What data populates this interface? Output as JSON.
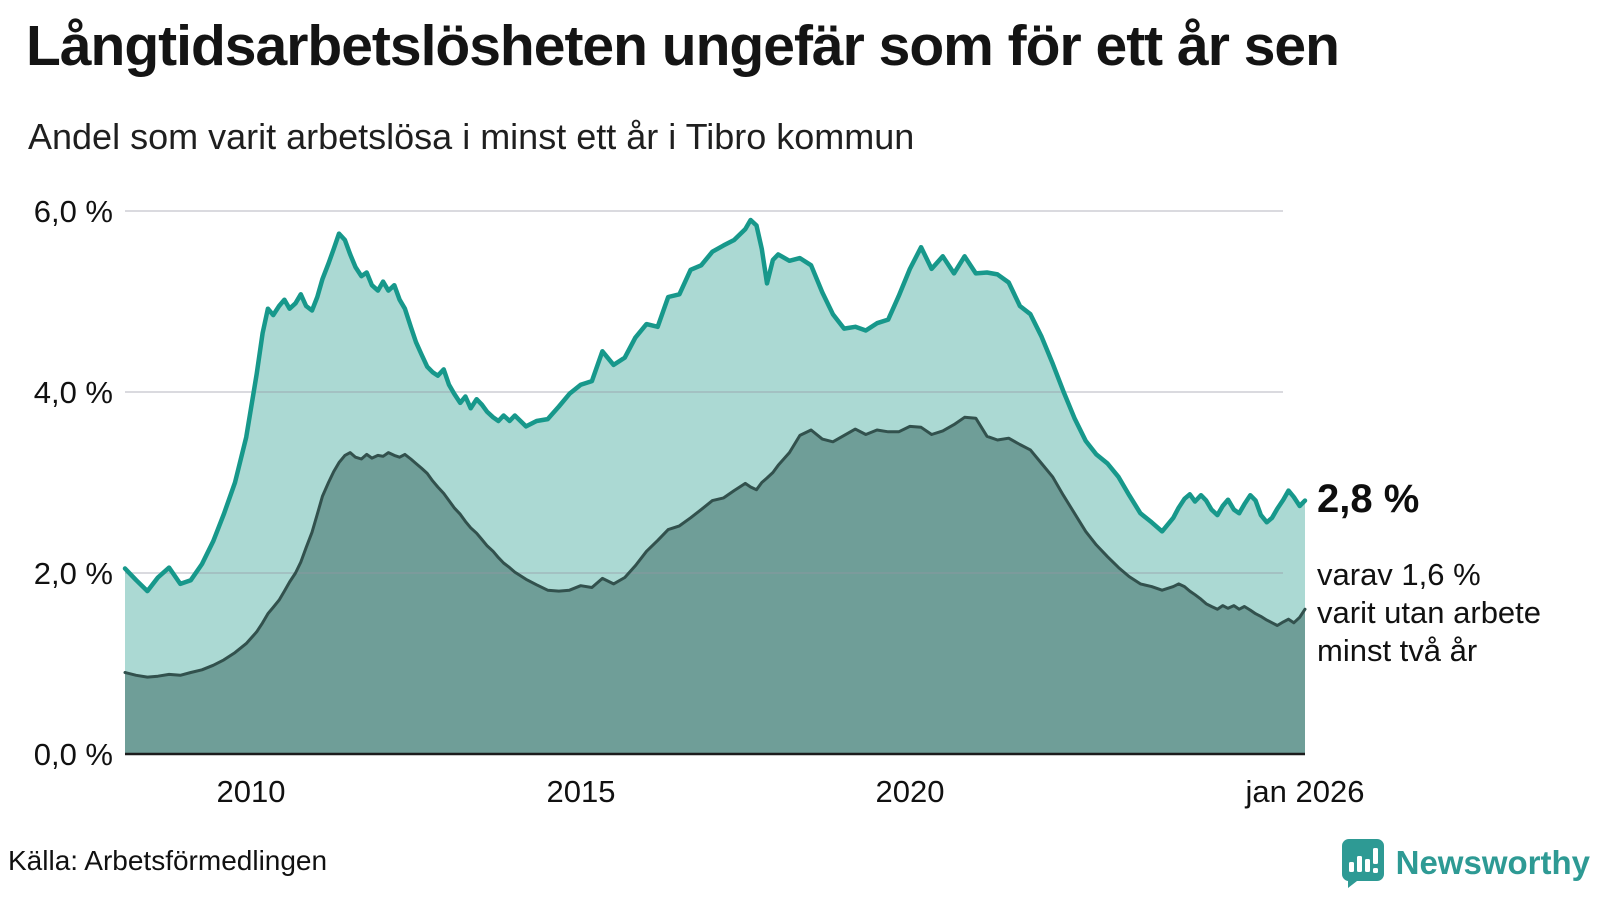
{
  "header": {
    "title": "Långtidsarbetslösheten ungefär som för ett år sen",
    "subtitle": "Andel som varit arbetslösa i minst ett år i Tibro kommun"
  },
  "annotations": {
    "latest_total": "2,8 %",
    "breakdown_line1": "varav 1,6 %",
    "breakdown_line2": "varit utan arbete",
    "breakdown_line3": "minst två år"
  },
  "source": {
    "label": "Källa: Arbetsförmedlingen"
  },
  "logo": {
    "text": "Newsworthy",
    "color": "#2e9a94"
  },
  "chart_data": {
    "type": "area",
    "title": "Långtidsarbetslösheten ungefär som för ett år sen",
    "subtitle": "Andel som varit arbetslösa i minst ett år i Tibro kommun",
    "x_unit": "decimal_year",
    "xlim": [
      2008.08,
      2026.0
    ],
    "ylim": [
      0,
      6.0
    ],
    "grid": true,
    "legend_position": "none",
    "grid_color": "rgba(150,150,162,0.35)",
    "axis_line_color": "#1c1c1c",
    "tick_label_color": "#111111",
    "y_ticks": [
      {
        "value": 0,
        "label": "0,0 %"
      },
      {
        "value": 2,
        "label": "2,0 %"
      },
      {
        "value": 4,
        "label": "4,0 %"
      },
      {
        "value": 6,
        "label": "6,0 %"
      }
    ],
    "x_ticks": [
      {
        "value": 2010,
        "label": "2010"
      },
      {
        "value": 2015,
        "label": "2015"
      },
      {
        "value": 2020,
        "label": "2020"
      },
      {
        "value": 2026.0,
        "label": "jan 2026"
      }
    ],
    "x": [
      2008.08,
      2008.25,
      2008.42,
      2008.58,
      2008.75,
      2008.92,
      2009.08,
      2009.25,
      2009.42,
      2009.58,
      2009.75,
      2009.92,
      2010.08,
      2010.17,
      2010.25,
      2010.33,
      2010.42,
      2010.5,
      2010.58,
      2010.67,
      2010.75,
      2010.83,
      2010.92,
      2011.0,
      2011.08,
      2011.17,
      2011.25,
      2011.33,
      2011.42,
      2011.5,
      2011.58,
      2011.67,
      2011.75,
      2011.83,
      2011.92,
      2012.0,
      2012.08,
      2012.17,
      2012.25,
      2012.33,
      2012.42,
      2012.5,
      2012.58,
      2012.67,
      2012.75,
      2012.83,
      2012.92,
      2013.0,
      2013.08,
      2013.17,
      2013.25,
      2013.33,
      2013.42,
      2013.5,
      2013.58,
      2013.67,
      2013.75,
      2013.83,
      2013.92,
      2014.0,
      2014.17,
      2014.33,
      2014.5,
      2014.67,
      2014.83,
      2015.0,
      2015.17,
      2015.33,
      2015.5,
      2015.67,
      2015.83,
      2016.0,
      2016.17,
      2016.33,
      2016.5,
      2016.67,
      2016.83,
      2017.0,
      2017.17,
      2017.33,
      2017.5,
      2017.58,
      2017.67,
      2017.75,
      2017.83,
      2017.92,
      2018.0,
      2018.17,
      2018.33,
      2018.5,
      2018.67,
      2018.83,
      2019.0,
      2019.17,
      2019.33,
      2019.5,
      2019.67,
      2019.83,
      2020.0,
      2020.17,
      2020.33,
      2020.5,
      2020.67,
      2020.83,
      2021.0,
      2021.17,
      2021.33,
      2021.5,
      2021.67,
      2021.83,
      2022.0,
      2022.17,
      2022.33,
      2022.5,
      2022.67,
      2022.83,
      2023.0,
      2023.17,
      2023.33,
      2023.5,
      2023.67,
      2023.83,
      2024.0,
      2024.08,
      2024.17,
      2024.25,
      2024.33,
      2024.42,
      2024.5,
      2024.58,
      2024.67,
      2024.75,
      2024.83,
      2024.92,
      2025.0,
      2025.08,
      2025.17,
      2025.25,
      2025.33,
      2025.42,
      2025.5,
      2025.58,
      2025.67,
      2025.75,
      2025.83,
      2025.92,
      2026.0
    ],
    "series": [
      {
        "name": "Andel arbetslösa minst ett år",
        "color": "#17988b",
        "fill": "#abd9d3",
        "stroke_width": 4.5,
        "end_label": "2,8 %",
        "values": [
          2.05,
          1.92,
          1.8,
          1.95,
          2.06,
          1.88,
          1.92,
          2.1,
          2.35,
          2.65,
          3.0,
          3.5,
          4.2,
          4.65,
          4.92,
          4.85,
          4.95,
          5.02,
          4.92,
          4.98,
          5.08,
          4.95,
          4.9,
          5.05,
          5.25,
          5.42,
          5.58,
          5.75,
          5.68,
          5.52,
          5.38,
          5.28,
          5.32,
          5.18,
          5.12,
          5.22,
          5.12,
          5.18,
          5.02,
          4.92,
          4.72,
          4.55,
          4.42,
          4.28,
          4.22,
          4.18,
          4.25,
          4.08,
          3.98,
          3.88,
          3.95,
          3.82,
          3.92,
          3.86,
          3.78,
          3.72,
          3.68,
          3.74,
          3.68,
          3.74,
          3.62,
          3.68,
          3.7,
          3.84,
          3.98,
          4.08,
          4.12,
          4.45,
          4.3,
          4.38,
          4.6,
          4.75,
          4.72,
          5.05,
          5.08,
          5.35,
          5.4,
          5.55,
          5.62,
          5.68,
          5.8,
          5.9,
          5.84,
          5.58,
          5.2,
          5.46,
          5.52,
          5.45,
          5.48,
          5.4,
          5.1,
          4.86,
          4.7,
          4.72,
          4.68,
          4.76,
          4.8,
          5.06,
          5.36,
          5.6,
          5.36,
          5.5,
          5.31,
          5.5,
          5.31,
          5.32,
          5.3,
          5.21,
          4.95,
          4.86,
          4.61,
          4.31,
          4.01,
          3.71,
          3.46,
          3.31,
          3.21,
          3.06,
          2.86,
          2.66,
          2.56,
          2.46,
          2.61,
          2.72,
          2.82,
          2.87,
          2.79,
          2.86,
          2.8,
          2.7,
          2.64,
          2.74,
          2.81,
          2.7,
          2.66,
          2.76,
          2.86,
          2.8,
          2.64,
          2.56,
          2.61,
          2.71,
          2.81,
          2.91,
          2.84,
          2.74,
          2.8
        ]
      },
      {
        "name": "Andel utan arbete minst två år",
        "color": "#32514d",
        "fill": "#6f9e98",
        "stroke_width": 3,
        "end_label": "varav 1,6 % varit utan arbete minst två år",
        "values": [
          0.9,
          0.87,
          0.85,
          0.86,
          0.88,
          0.87,
          0.9,
          0.93,
          0.98,
          1.04,
          1.12,
          1.22,
          1.35,
          1.45,
          1.55,
          1.62,
          1.7,
          1.8,
          1.9,
          2.0,
          2.12,
          2.28,
          2.45,
          2.65,
          2.85,
          3.0,
          3.12,
          3.22,
          3.3,
          3.33,
          3.28,
          3.26,
          3.31,
          3.27,
          3.3,
          3.29,
          3.33,
          3.3,
          3.28,
          3.31,
          3.26,
          3.21,
          3.16,
          3.1,
          3.02,
          2.95,
          2.88,
          2.8,
          2.72,
          2.65,
          2.57,
          2.5,
          2.44,
          2.37,
          2.3,
          2.24,
          2.17,
          2.11,
          2.06,
          2.01,
          1.93,
          1.87,
          1.81,
          1.8,
          1.81,
          1.86,
          1.84,
          1.94,
          1.88,
          1.95,
          2.08,
          2.24,
          2.36,
          2.48,
          2.52,
          2.61,
          2.7,
          2.8,
          2.83,
          2.91,
          2.99,
          2.95,
          2.92,
          3.0,
          3.05,
          3.11,
          3.19,
          3.33,
          3.52,
          3.58,
          3.48,
          3.45,
          3.52,
          3.59,
          3.53,
          3.58,
          3.56,
          3.56,
          3.62,
          3.61,
          3.53,
          3.57,
          3.64,
          3.72,
          3.71,
          3.51,
          3.47,
          3.49,
          3.42,
          3.36,
          3.21,
          3.06,
          2.86,
          2.66,
          2.46,
          2.31,
          2.18,
          2.06,
          1.96,
          1.88,
          1.85,
          1.81,
          1.85,
          1.88,
          1.85,
          1.8,
          1.76,
          1.71,
          1.66,
          1.63,
          1.6,
          1.64,
          1.61,
          1.64,
          1.6,
          1.63,
          1.59,
          1.55,
          1.52,
          1.48,
          1.45,
          1.42,
          1.46,
          1.49,
          1.45,
          1.51,
          1.6
        ]
      }
    ]
  }
}
